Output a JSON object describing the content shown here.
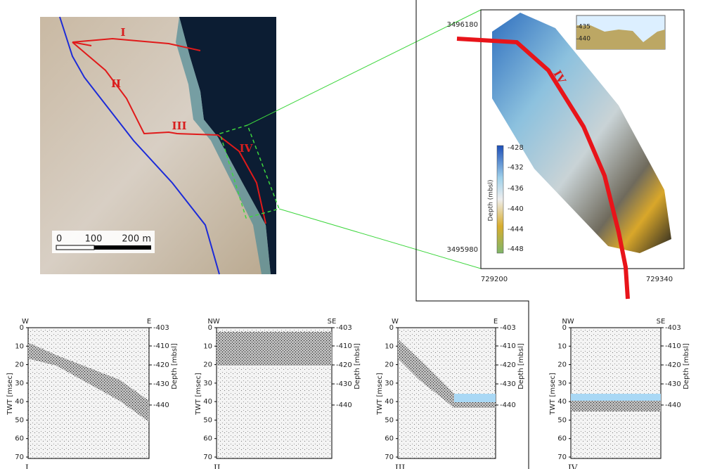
{
  "map": {
    "labels": [
      "I",
      "II",
      "III",
      "IV"
    ],
    "scale": [
      "0",
      "100",
      "200 m"
    ]
  },
  "inset": {
    "y_labels": [
      "3496180",
      "3495980"
    ],
    "x_labels": [
      "729200",
      "729340"
    ],
    "route_label": "IV",
    "colorbar_title": "Depth (mbsl)",
    "colorbar_ticks": [
      "-428",
      "-432",
      "-436",
      "-440",
      "-444",
      "-448"
    ],
    "profile_ticks": [
      "-435",
      "-440"
    ]
  },
  "panels": [
    {
      "left": "W",
      "right": "E",
      "label": "I"
    },
    {
      "left": "NW",
      "right": "SE",
      "label": "II"
    },
    {
      "left": "W",
      "right": "E",
      "label": "III"
    },
    {
      "left": "NW",
      "right": "SE",
      "label": "IV"
    }
  ],
  "twt_axis": {
    "title": "TWT [msec]",
    "ticks": [
      "0",
      "10",
      "20",
      "30",
      "40",
      "50",
      "60",
      "70"
    ]
  },
  "depth_axis": {
    "title": "Depth [mbsl]",
    "ticks": [
      "-403",
      "-410",
      "-420",
      "-430",
      "-440"
    ]
  }
}
